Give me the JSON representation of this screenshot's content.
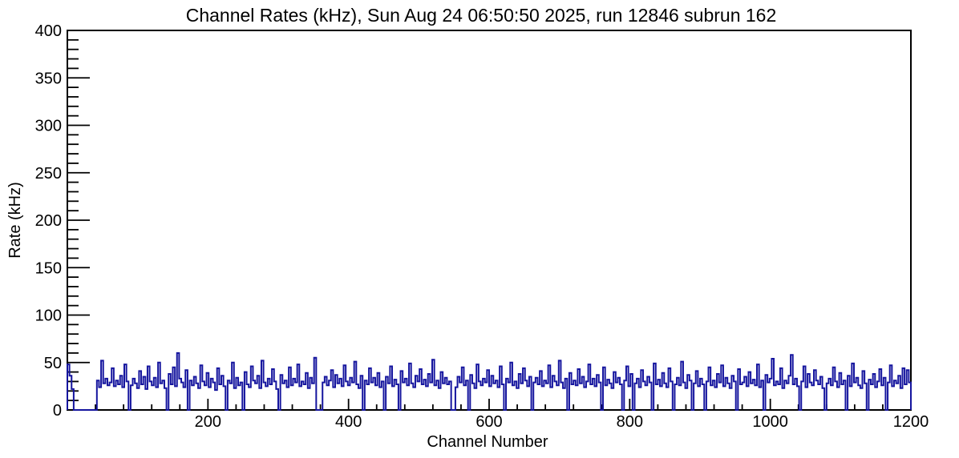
{
  "chart_data": {
    "type": "line",
    "style": "histogram-step",
    "title": "Channel Rates (kHz), Sun Aug 24 06:50:50 2025, run 12846 subrun 162",
    "xlabel": "Channel Number",
    "ylabel": "Rate (kHz)",
    "xlim": [
      0,
      1200
    ],
    "ylim": [
      0,
      400
    ],
    "x_tick_labels": [
      200,
      400,
      600,
      800,
      1000,
      1200
    ],
    "y_tick_labels": [
      0,
      50,
      100,
      150,
      200,
      250,
      300,
      350,
      400
    ],
    "x_major_step": 200,
    "x_minor_step": 40,
    "y_major_step": 50,
    "y_minor_step": 10,
    "grid": false,
    "legend": false,
    "line_color": "#15159e",
    "axis_color": "#000000",
    "background_color": "#ffffff",
    "bin_width": 3,
    "values_note": "Rate (kHz) per 3-channel bin, channels 0-1200, estimated from plot",
    "values": [
      48,
      36,
      22,
      0,
      0,
      0,
      0,
      0,
      0,
      0,
      0,
      0,
      0,
      0,
      31,
      24,
      52,
      28,
      33,
      26,
      29,
      44,
      25,
      31,
      27,
      36,
      24,
      48,
      30,
      0,
      26,
      33,
      28,
      23,
      41,
      27,
      35,
      22,
      46,
      30,
      26,
      34,
      24,
      50,
      28,
      31,
      23,
      0,
      38,
      27,
      45,
      25,
      60,
      33,
      29,
      24,
      42,
      0,
      31,
      26,
      35,
      28,
      23,
      47,
      30,
      26,
      39,
      24,
      33,
      29,
      21,
      44,
      27,
      36,
      25,
      0,
      31,
      28,
      50,
      23,
      34,
      26,
      29,
      0,
      40,
      27,
      24,
      46,
      31,
      28,
      36,
      23,
      52,
      29,
      25,
      33,
      27,
      43,
      30,
      22,
      0,
      37,
      28,
      31,
      24,
      45,
      26,
      33,
      29,
      48,
      25,
      30,
      27,
      39,
      23,
      34,
      28,
      55,
      0,
      0,
      0,
      29,
      35,
      26,
      31,
      42,
      24,
      37,
      28,
      33,
      25,
      47,
      30,
      26,
      34,
      29,
      51,
      27,
      23,
      36,
      0,
      31,
      27,
      44,
      29,
      34,
      26,
      39,
      24,
      30,
      0,
      35,
      28,
      46,
      25,
      32,
      27,
      0,
      41,
      29,
      33,
      26,
      49,
      28,
      24,
      36,
      30,
      43,
      27,
      32,
      25,
      38,
      29,
      53,
      26,
      31,
      23,
      40,
      28,
      34,
      27,
      30,
      0,
      0,
      24,
      35,
      29,
      45,
      26,
      31,
      0,
      37,
      28,
      23,
      48,
      30,
      26,
      33,
      29,
      42,
      25,
      36,
      28,
      31,
      24,
      46,
      27,
      0,
      33,
      29,
      50,
      26,
      30,
      23,
      38,
      28,
      44,
      31,
      25,
      35,
      0,
      29,
      34,
      27,
      41,
      25,
      31,
      28,
      47,
      24,
      36,
      30,
      26,
      52,
      29,
      23,
      33,
      0,
      39,
      27,
      31,
      26,
      43,
      28,
      35,
      24,
      30,
      48,
      27,
      33,
      25,
      37,
      29,
      0,
      45,
      26,
      32,
      28,
      23,
      40,
      29,
      34,
      27,
      0,
      31,
      46,
      25,
      38,
      0,
      28,
      33,
      24,
      42,
      30,
      26,
      35,
      29,
      0,
      49,
      27,
      32,
      25,
      39,
      28,
      24,
      44,
      30,
      0,
      27,
      34,
      26,
      51,
      29,
      23,
      37,
      31,
      0,
      28,
      41,
      25,
      33,
      27,
      0,
      30,
      45,
      26,
      31,
      24,
      38,
      29,
      47,
      25,
      34,
      28,
      23,
      36,
      30,
      0,
      43,
      27,
      29,
      35,
      25,
      40,
      28,
      32,
      26,
      48,
      24,
      31,
      0,
      37,
      29,
      33,
      54,
      26,
      30,
      27,
      44,
      23,
      31,
      28,
      36,
      58,
      27,
      33,
      25,
      0,
      30,
      46,
      24,
      38,
      29,
      26,
      42,
      31,
      27,
      35,
      23,
      0,
      28,
      33,
      26,
      45,
      30,
      24,
      39,
      27,
      31,
      0,
      36,
      25,
      49,
      29,
      34,
      26,
      23,
      41,
      28,
      0,
      32,
      27,
      38,
      24,
      30,
      43,
      26,
      34,
      0,
      29,
      47,
      25,
      31,
      28,
      36,
      23,
      44,
      27,
      42,
      29
    ]
  }
}
